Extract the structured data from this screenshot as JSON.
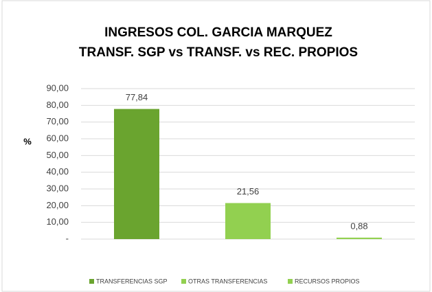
{
  "chart_data": {
    "type": "bar",
    "title": [
      "INGRESOS COL. GARCIA MARQUEZ",
      "TRANSF. SGP vs TRANSF. vs REC. PROPIOS"
    ],
    "y_label": "%",
    "categories": [
      "TRANSFERENCIAS SGP",
      "OTRAS TRANSFERENCIAS",
      "RECURSOS PROPIOS"
    ],
    "values": [
      77.84,
      21.56,
      0.88
    ],
    "value_labels": [
      "77,84",
      "21,56",
      "0,88"
    ],
    "colors": [
      "#6aa42f",
      "#92d050",
      "#92d050"
    ],
    "ylim": [
      0,
      90
    ],
    "yticks": [
      {
        "value": 0,
        "label": "-"
      },
      {
        "value": 10,
        "label": "10,00"
      },
      {
        "value": 20,
        "label": "20,00"
      },
      {
        "value": 30,
        "label": "30,00"
      },
      {
        "value": 40,
        "label": "40,00"
      },
      {
        "value": 50,
        "label": "50,00"
      },
      {
        "value": 60,
        "label": "60,00"
      },
      {
        "value": 70,
        "label": "70,00"
      },
      {
        "value": 80,
        "label": "80,00"
      },
      {
        "value": 90,
        "label": "90,00"
      }
    ],
    "grid": true,
    "legend": "bottom"
  }
}
